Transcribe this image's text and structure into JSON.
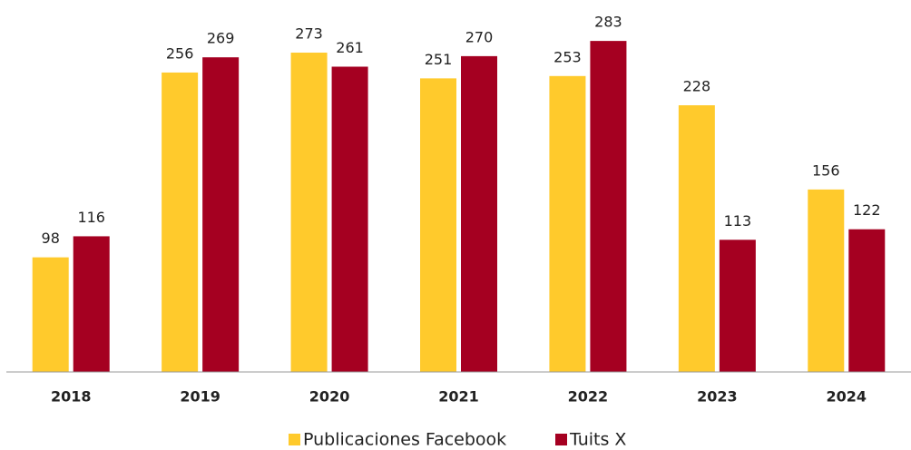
{
  "chart_data": {
    "type": "bar",
    "categories": [
      "2018",
      "2019",
      "2020",
      "2021",
      "2022",
      "2023",
      "2024"
    ],
    "series": [
      {
        "name": "Publicaciones Facebook",
        "color": "#FFCA2C",
        "values": [
          98,
          256,
          273,
          251,
          253,
          228,
          156
        ]
      },
      {
        "name": "Tuits X",
        "color": "#A50021",
        "values": [
          116,
          269,
          261,
          270,
          283,
          113,
          122
        ]
      }
    ],
    "ylim": [
      0,
      318
    ],
    "grid": false
  }
}
